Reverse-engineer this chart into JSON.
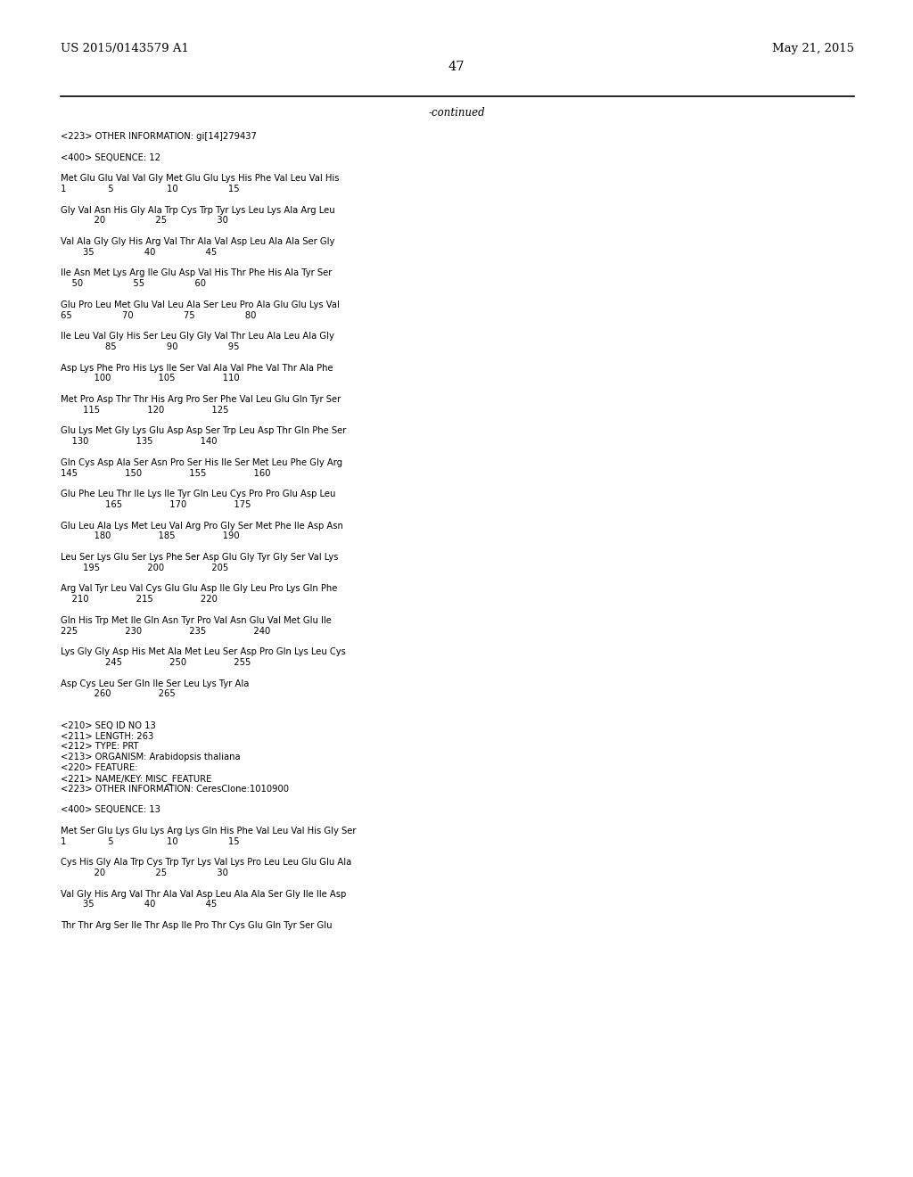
{
  "left_header": "US 2015/0143579 A1",
  "right_header": "May 21, 2015",
  "page_number": "47",
  "continued_text": "-continued",
  "background_color": "#ffffff",
  "text_color": "#000000",
  "content": [
    "<223> OTHER INFORMATION: gi[14]279437",
    "",
    "<400> SEQUENCE: 12",
    "",
    "Met Glu Glu Val Val Gly Met Glu Glu Lys His Phe Val Leu Val His",
    "1               5                   10                  15",
    "",
    "Gly Val Asn His Gly Ala Trp Cys Trp Tyr Lys Leu Lys Ala Arg Leu",
    "            20                  25                  30",
    "",
    "Val Ala Gly Gly His Arg Val Thr Ala Val Asp Leu Ala Ala Ser Gly",
    "        35                  40                  45",
    "",
    "Ile Asn Met Lys Arg Ile Glu Asp Val His Thr Phe His Ala Tyr Ser",
    "    50                  55                  60",
    "",
    "Glu Pro Leu Met Glu Val Leu Ala Ser Leu Pro Ala Glu Glu Lys Val",
    "65                  70                  75                  80",
    "",
    "Ile Leu Val Gly His Ser Leu Gly Gly Val Thr Leu Ala Leu Ala Gly",
    "                85                  90                  95",
    "",
    "Asp Lys Phe Pro His Lys Ile Ser Val Ala Val Phe Val Thr Ala Phe",
    "            100                 105                 110",
    "",
    "Met Pro Asp Thr Thr His Arg Pro Ser Phe Val Leu Glu Gln Tyr Ser",
    "        115                 120                 125",
    "",
    "Glu Lys Met Gly Lys Glu Asp Asp Ser Trp Leu Asp Thr Gln Phe Ser",
    "    130                 135                 140",
    "",
    "Gln Cys Asp Ala Ser Asn Pro Ser His Ile Ser Met Leu Phe Gly Arg",
    "145                 150                 155                 160",
    "",
    "Glu Phe Leu Thr Ile Lys Ile Tyr Gln Leu Cys Pro Pro Glu Asp Leu",
    "                165                 170                 175",
    "",
    "Glu Leu Ala Lys Met Leu Val Arg Pro Gly Ser Met Phe Ile Asp Asn",
    "            180                 185                 190",
    "",
    "Leu Ser Lys Glu Ser Lys Phe Ser Asp Glu Gly Tyr Gly Ser Val Lys",
    "        195                 200                 205",
    "",
    "Arg Val Tyr Leu Val Cys Glu Glu Asp Ile Gly Leu Pro Lys Gln Phe",
    "    210                 215                 220",
    "",
    "Gln His Trp Met Ile Gln Asn Tyr Pro Val Asn Glu Val Met Glu Ile",
    "225                 230                 235                 240",
    "",
    "Lys Gly Gly Asp His Met Ala Met Leu Ser Asp Pro Gln Lys Leu Cys",
    "                245                 250                 255",
    "",
    "Asp Cys Leu Ser Gln Ile Ser Leu Lys Tyr Ala",
    "            260                 265",
    "",
    "",
    "<210> SEQ ID NO 13",
    "<211> LENGTH: 263",
    "<212> TYPE: PRT",
    "<213> ORGANISM: Arabidopsis thaliana",
    "<220> FEATURE:",
    "<221> NAME/KEY: MISC_FEATURE",
    "<223> OTHER INFORMATION: CeresClone:1010900",
    "",
    "<400> SEQUENCE: 13",
    "",
    "Met Ser Glu Lys Glu Lys Arg Lys Gln His Phe Val Leu Val His Gly Ser",
    "1               5                   10                  15",
    "",
    "Cys His Gly Ala Trp Cys Trp Tyr Lys Val Lys Pro Leu Leu Glu Glu Ala",
    "            20                  25                  30",
    "",
    "Val Gly His Arg Val Thr Ala Val Asp Leu Ala Ala Ser Gly Ile Ile Asp",
    "        35                  40                  45",
    "",
    "Thr Thr Arg Ser Ile Thr Asp Ile Pro Thr Cys Glu Gln Tyr Ser Glu"
  ]
}
